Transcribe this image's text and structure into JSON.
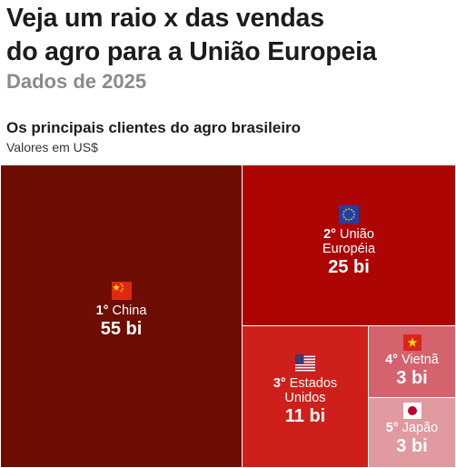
{
  "headline": {
    "line1": "Veja um raio x das vendas",
    "line2": "do agro para a União Europeia"
  },
  "subhead": "Dados de 2025",
  "chart_data": {
    "type": "treemap",
    "title": "Os principais clientes do agro brasileiro",
    "subtitle": "Valores em US$",
    "unit": "bi",
    "items": [
      {
        "rank": "1°",
        "name": "China",
        "value": 55,
        "value_label": "55 bi",
        "color": "#6e0d04",
        "flag": "china-flag-icon"
      },
      {
        "rank": "2°",
        "name": "União Européia",
        "name_lines": [
          "União",
          "Européia"
        ],
        "value": 25,
        "value_label": "25 bi",
        "color": "#ad0404",
        "flag": "eu-flag-icon"
      },
      {
        "rank": "3°",
        "name": "Estados Unidos",
        "name_lines": [
          "Estados",
          "Unidos"
        ],
        "value": 11,
        "value_label": "11 bi",
        "color": "#cf1f1a",
        "flag": "usa-flag-icon"
      },
      {
        "rank": "4°",
        "name": "Vietnã",
        "value": 3,
        "value_label": "3 bi",
        "color": "#d4636e",
        "flag": "vietnam-flag-icon"
      },
      {
        "rank": "5°",
        "name": "Japão",
        "value": 3,
        "value_label": "3 bi",
        "color": "#e09aa0",
        "flag": "japan-flag-icon"
      }
    ]
  }
}
